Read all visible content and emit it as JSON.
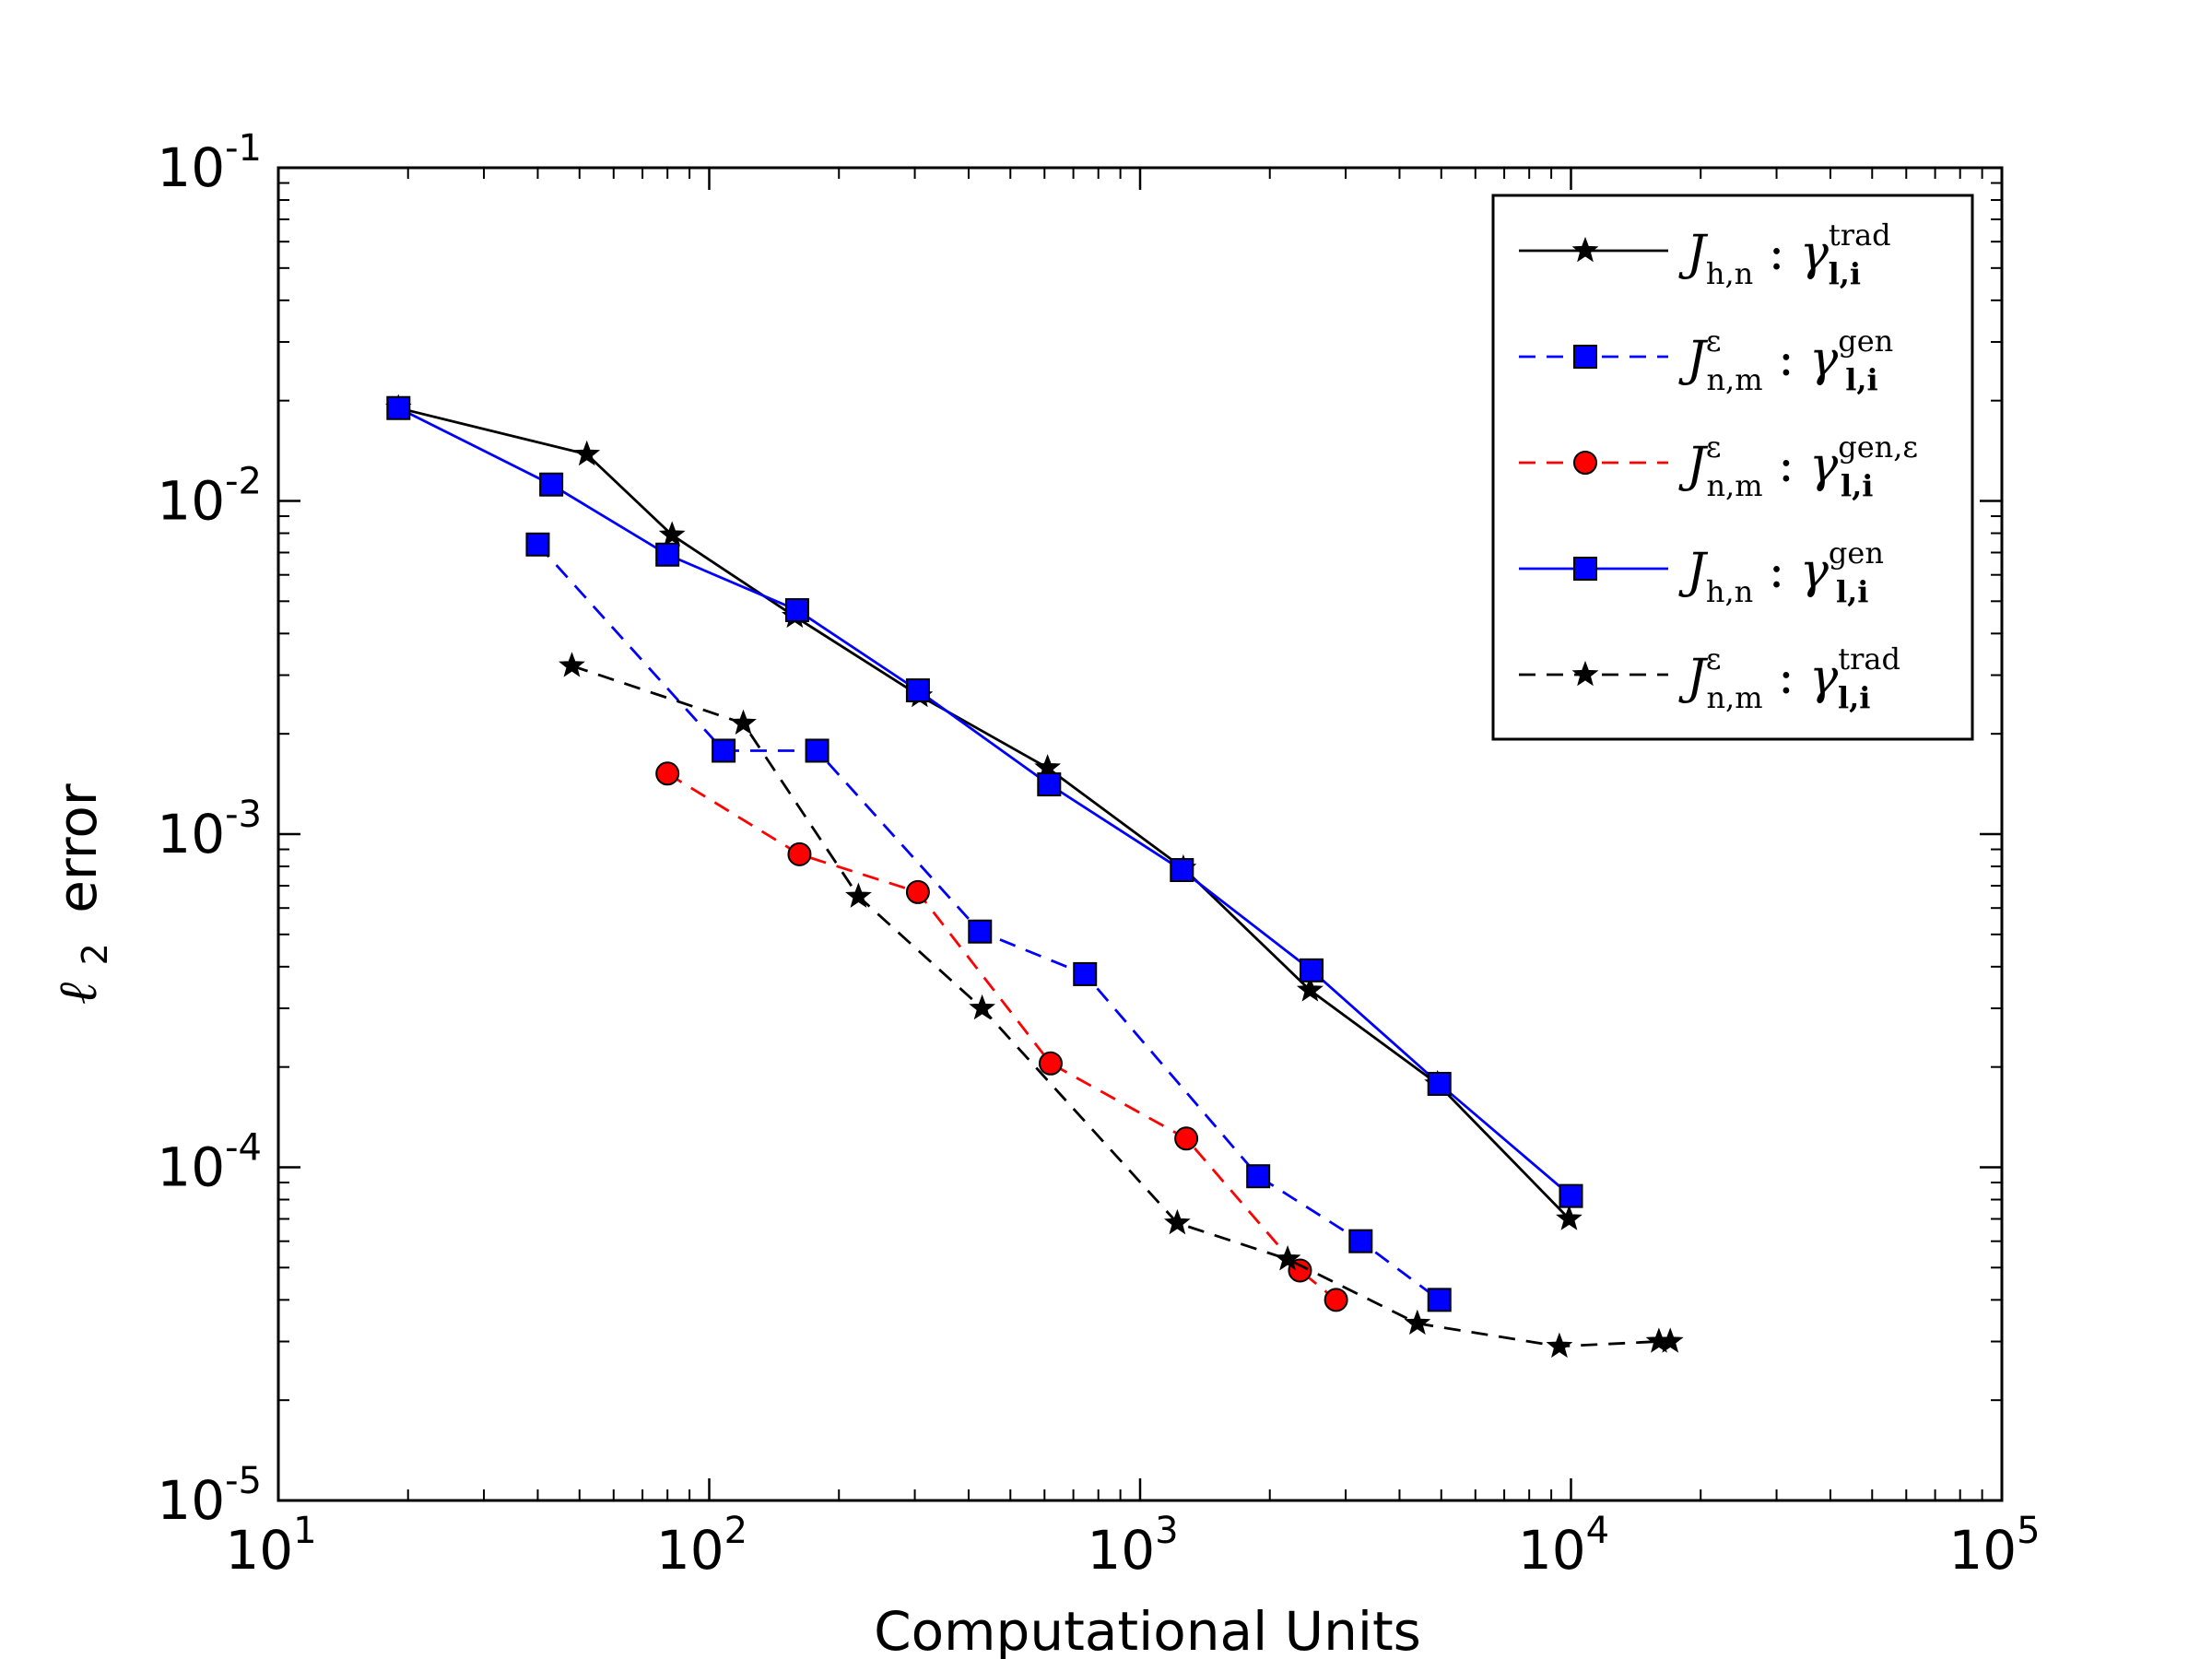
{
  "chart_data": {
    "type": "line",
    "xscale": "log",
    "yscale": "log",
    "xlim": [
      10,
      100000
    ],
    "ylim": [
      1e-05,
      0.1
    ],
    "xlabel": "Computational Units",
    "ylabel_symbol": "ℓ",
    "ylabel_subscript": "2",
    "ylabel_text": "error",
    "grid": false,
    "legend_position": "top-right",
    "x_ticks": [
      {
        "value": 10,
        "base": "10",
        "exp": "1"
      },
      {
        "value": 100,
        "base": "10",
        "exp": "2"
      },
      {
        "value": 1000,
        "base": "10",
        "exp": "3"
      },
      {
        "value": 10000,
        "base": "10",
        "exp": "4"
      },
      {
        "value": 100000,
        "base": "10",
        "exp": "5"
      }
    ],
    "y_ticks": [
      {
        "value": 0.1,
        "base": "10",
        "exp": "-1"
      },
      {
        "value": 0.01,
        "base": "10",
        "exp": "-2"
      },
      {
        "value": 0.001,
        "base": "10",
        "exp": "-3"
      },
      {
        "value": 0.0001,
        "base": "10",
        "exp": "-4"
      },
      {
        "value": 1e-05,
        "base": "10",
        "exp": "-5"
      }
    ],
    "series": [
      {
        "name": "Jh,n : gamma trad",
        "legend_main": "J",
        "legend_sup": "",
        "legend_sub": "h,n",
        "legend_gamma_sup": "trad",
        "legend_gamma_sub": "l,i",
        "color": "#000000",
        "marker_fill": "#000000",
        "marker": "star",
        "dash": "solid",
        "x": [
          19,
          52,
          82,
          158,
          308,
          610,
          1260,
          2480,
          4900,
          9900
        ],
        "y": [
          0.019,
          0.0138,
          0.0079,
          0.0045,
          0.0026,
          0.00158,
          0.00079,
          0.00034,
          0.000178,
          7e-05
        ]
      },
      {
        "name": "J eps n,m : gamma gen",
        "legend_main": "J",
        "legend_sup": "ε",
        "legend_sub": "n,m",
        "legend_gamma_sup": "gen",
        "legend_gamma_sub": "l,i",
        "color": "#0000ff",
        "marker_fill": "#0000ff",
        "marker": "square",
        "dash": "dashed",
        "x": [
          40,
          108,
          178,
          425,
          745,
          1880,
          3250,
          4950
        ],
        "y": [
          0.0074,
          0.00178,
          0.00178,
          0.00051,
          0.00038,
          9.4e-05,
          6e-05,
          4e-05
        ]
      },
      {
        "name": "J eps n,m : gamma gen,eps",
        "legend_main": "J",
        "legend_sup": "ε",
        "legend_sub": "n,m",
        "legend_gamma_sup": "gen,ε",
        "legend_gamma_sub": "l,i",
        "color": "#ff0000",
        "marker_fill": "#ff0000",
        "marker": "circle",
        "dash": "dashed",
        "x": [
          80,
          162,
          305,
          620,
          1280,
          2350,
          2850
        ],
        "y": [
          0.00152,
          0.00087,
          0.00067,
          0.000205,
          0.000122,
          4.9e-05,
          4e-05
        ]
      },
      {
        "name": "Jh,n : gamma gen",
        "legend_main": "J",
        "legend_sup": "",
        "legend_sub": "h,n",
        "legend_gamma_sup": "gen",
        "legend_gamma_sub": "l,i",
        "color": "#0000ff",
        "marker_fill": "#0000ff",
        "marker": "square",
        "dash": "solid",
        "x": [
          19,
          43,
          80,
          160,
          305,
          615,
          1250,
          2500,
          4950,
          10000
        ],
        "y": [
          0.019,
          0.0112,
          0.0069,
          0.0047,
          0.0027,
          0.00141,
          0.00078,
          0.00039,
          0.000178,
          8.2e-05
        ]
      },
      {
        "name": "J eps n,m : gamma trad",
        "legend_main": "J",
        "legend_sup": "ε",
        "legend_sub": "n,m",
        "legend_gamma_sup": "trad",
        "legend_gamma_sub": "l,i",
        "color": "#000000",
        "marker_fill": "#000000",
        "marker": "star",
        "dash": "dashed",
        "x": [
          48,
          120,
          222,
          430,
          1220,
          2200,
          4400,
          9400,
          16000,
          17000
        ],
        "y": [
          0.0032,
          0.00215,
          0.00065,
          0.0003,
          6.8e-05,
          5.3e-05,
          3.4e-05,
          2.9e-05,
          3e-05,
          3e-05
        ]
      }
    ]
  }
}
